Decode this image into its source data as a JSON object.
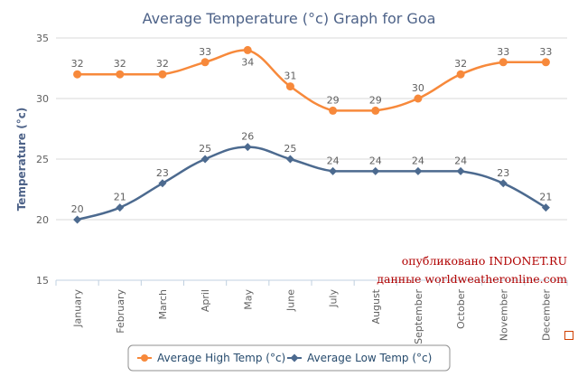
{
  "chart_data": {
    "type": "line",
    "title": "Average Temperature (°c) Graph for Goa",
    "ylabel": "Temperature (°c)",
    "xlabel": "",
    "ylim": [
      15,
      35
    ],
    "yticks": [
      "15",
      "20",
      "25",
      "30",
      "35"
    ],
    "categories": [
      "January",
      "February",
      "March",
      "April",
      "May",
      "June",
      "July",
      "August",
      "September",
      "October",
      "November",
      "December"
    ],
    "series": [
      {
        "name": "Average High Temp (°c)",
        "values": [
          32,
          32,
          32,
          33,
          34,
          31,
          29,
          29,
          30,
          32,
          33,
          33
        ],
        "color": "#f7893b",
        "marker": "circle"
      },
      {
        "name": "Average Low Temp (°c)",
        "values": [
          20,
          21,
          23,
          25,
          26,
          25,
          24,
          24,
          24,
          24,
          23,
          21
        ],
        "color": "#4c6a8f",
        "marker": "diamond"
      }
    ],
    "grid": true,
    "legend_position": "bottom"
  },
  "watermark": {
    "line1": "опубликовано INDONET.RU",
    "line2": "данные worldweatheronline.com"
  }
}
